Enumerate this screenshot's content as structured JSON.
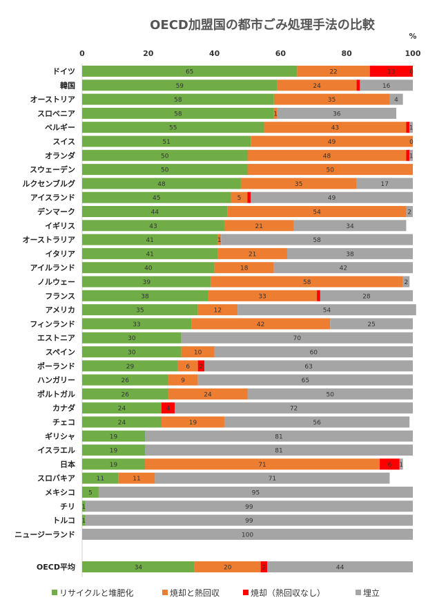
{
  "chart_data": {
    "type": "bar",
    "orientation": "horizontal",
    "stacked": true,
    "title": "OECD加盟国の都市ごみ処理手法の比較",
    "unit": "%",
    "xlim": [
      0,
      100
    ],
    "xticks": [
      "0",
      "20",
      "40",
      "60",
      "80",
      "100"
    ],
    "grid": false,
    "legend_position": "bottom",
    "categories": [
      "ドイツ",
      "韓国",
      "オーストリア",
      "スロベニア",
      "ベルギー",
      "スイス",
      "オランダ",
      "スウェーデン",
      "ルクセンブルグ",
      "アイスランド",
      "デンマーク",
      "イギリス",
      "オーストラリア",
      "イタリア",
      "アイルランド",
      "ノルウェー",
      "フランス",
      "アメリカ",
      "フィンランド",
      "エストニア",
      "スペイン",
      "ポーランド",
      "ハンガリー",
      "ポルトガル",
      "カナダ",
      "チェコ",
      "ギリシャ",
      "イスラエル",
      "日本",
      "スロバキア",
      "メキシコ",
      "チリ",
      "トルコ",
      "ニュージーランド",
      "OECD平均"
    ],
    "series": [
      {
        "name": "リサイクルと堆肥化",
        "color": "#70AD47",
        "values": [
          65,
          59,
          58,
          58,
          55,
          51,
          50,
          50,
          48,
          45,
          44,
          43,
          41,
          41,
          40,
          39,
          38,
          35,
          33,
          30,
          30,
          29,
          26,
          26,
          24,
          24,
          19,
          19,
          19,
          11,
          5,
          1,
          1,
          0,
          34
        ]
      },
      {
        "name": "焼却と熱回収",
        "color": "#ED7D31",
        "values": [
          22,
          24,
          35,
          1,
          43,
          49,
          48,
          50,
          35,
          5,
          54,
          21,
          1,
          21,
          18,
          58,
          33,
          12,
          42,
          0,
          10,
          6,
          9,
          24,
          0,
          19,
          0,
          0,
          71,
          11,
          0,
          0,
          0,
          0,
          20
        ]
      },
      {
        "name": "焼却（熱回収なし）",
        "color": "#FF0000",
        "values": [
          13,
          1,
          0,
          0,
          1,
          0,
          1,
          0,
          0,
          1,
          0,
          0,
          0,
          0,
          0,
          0,
          1,
          0,
          0,
          0,
          0,
          2,
          0,
          0,
          4,
          0,
          0,
          0,
          6,
          0,
          0,
          0,
          0,
          0,
          2
        ]
      },
      {
        "name": "埋立",
        "color": "#A5A5A5",
        "values": [
          0,
          16,
          4,
          36,
          1,
          0,
          1,
          0,
          17,
          49,
          2,
          34,
          58,
          38,
          42,
          2,
          28,
          54,
          25,
          70,
          60,
          63,
          65,
          50,
          72,
          56,
          81,
          81,
          1,
          71,
          95,
          99,
          99,
          100,
          44
        ]
      }
    ],
    "data_labels": [
      [
        "65",
        "22",
        "13",
        "0"
      ],
      [
        "59",
        "24",
        "",
        "16"
      ],
      [
        "58",
        "35",
        "",
        "4"
      ],
      [
        "58",
        "1",
        "",
        "36"
      ],
      [
        "55",
        "43",
        "",
        "1"
      ],
      [
        "51",
        "49",
        "",
        "0"
      ],
      [
        "50",
        "48",
        "",
        "1"
      ],
      [
        "50",
        "50",
        "",
        ""
      ],
      [
        "48",
        "35",
        "",
        "17"
      ],
      [
        "45",
        "5",
        "",
        "49"
      ],
      [
        "44",
        "54",
        "",
        "2"
      ],
      [
        "43",
        "21",
        "",
        "34"
      ],
      [
        "41",
        "1",
        "",
        "58"
      ],
      [
        "41",
        "21",
        "",
        "38"
      ],
      [
        "40",
        "18",
        "",
        "42"
      ],
      [
        "39",
        "58",
        "",
        "2"
      ],
      [
        "38",
        "33",
        "",
        "28"
      ],
      [
        "35",
        "12",
        "",
        "54"
      ],
      [
        "33",
        "42",
        "",
        "25"
      ],
      [
        "30",
        "",
        "",
        "70"
      ],
      [
        "30",
        "10",
        "",
        "60"
      ],
      [
        "29",
        "6",
        "2",
        "63"
      ],
      [
        "26",
        "9",
        "",
        "65"
      ],
      [
        "26",
        "24",
        "",
        "50"
      ],
      [
        "24",
        "",
        "4",
        "72"
      ],
      [
        "24",
        "19",
        "",
        "56"
      ],
      [
        "19",
        "",
        "",
        "81"
      ],
      [
        "19",
        "",
        "",
        "81"
      ],
      [
        "19",
        "71",
        "6",
        "1"
      ],
      [
        "11",
        "11",
        "",
        "71"
      ],
      [
        "5",
        "",
        "",
        "95"
      ],
      [
        "1",
        "",
        "",
        "99"
      ],
      [
        "1",
        "",
        "",
        "99"
      ],
      [
        "",
        "",
        "",
        "100"
      ],
      [
        "34",
        "20",
        "2",
        "44"
      ]
    ]
  }
}
